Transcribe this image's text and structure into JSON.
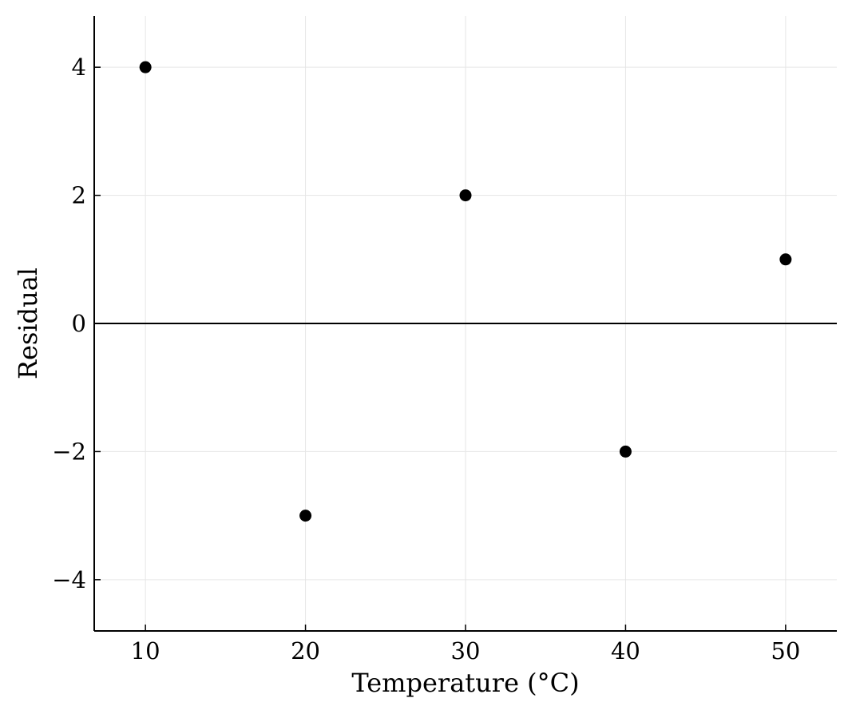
{
  "chart_data": {
    "type": "scatter",
    "title": "",
    "xlabel": "Temperature (°C)",
    "ylabel": "Residual",
    "xlim": [
      6.8,
      53.2
    ],
    "ylim": [
      -4.8,
      4.8
    ],
    "xticks": [
      10,
      20,
      30,
      40,
      50
    ],
    "xtick_labels": [
      "10",
      "20",
      "30",
      "40",
      "50"
    ],
    "yticks": [
      -4,
      -2,
      0,
      2,
      4
    ],
    "ytick_labels": [
      "−4",
      "−2",
      "0",
      "2",
      "4"
    ],
    "grid": true,
    "reference_line_y": 0,
    "series": [
      {
        "color": "#000000",
        "x": [
          10,
          20,
          30,
          40,
          50
        ],
        "y": [
          4,
          -3,
          2,
          -2,
          1
        ]
      }
    ]
  }
}
